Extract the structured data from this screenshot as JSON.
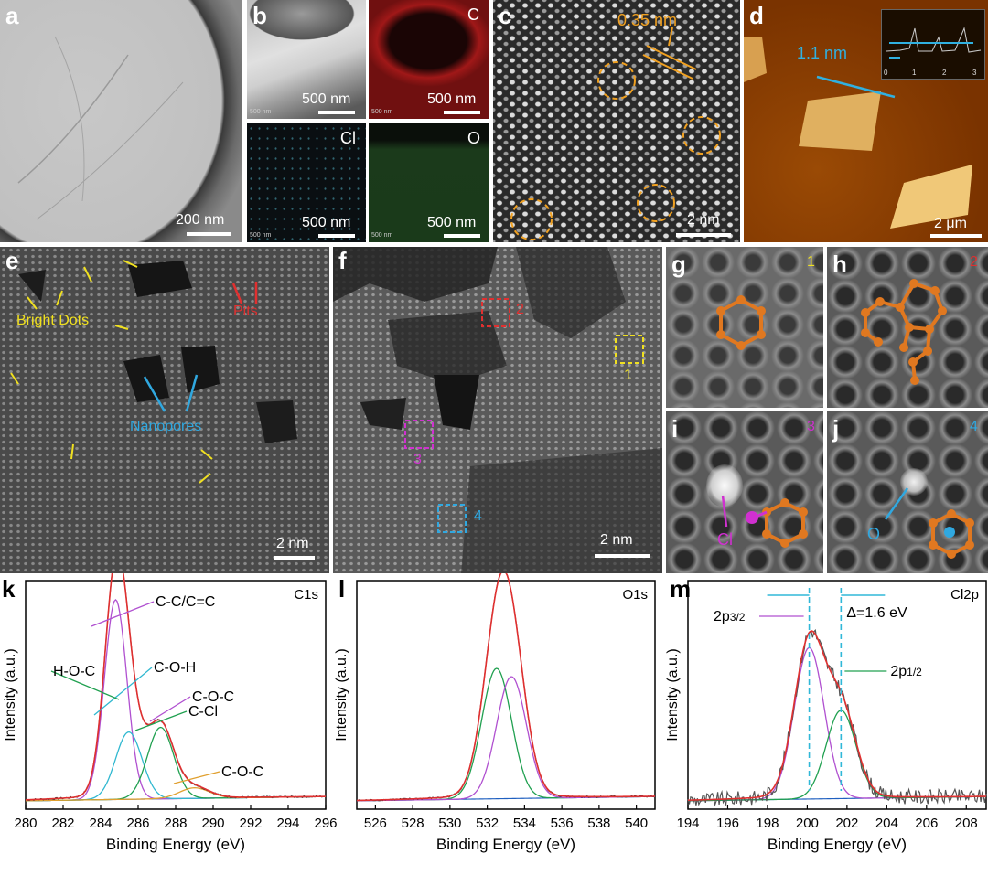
{
  "panels": {
    "a": {
      "letter": "a",
      "scale": "200 nm"
    },
    "b": {
      "letter": "b",
      "scale": "500 nm",
      "tiny": "500 nm"
    },
    "b_c": {
      "element": "C",
      "scale": "500 nm",
      "tiny": "500 nm"
    },
    "b_cl": {
      "element": "Cl",
      "scale": "500 nm",
      "tiny": "500 nm"
    },
    "b_o": {
      "element": "O",
      "scale": "500 nm",
      "tiny": "500 nm"
    },
    "c": {
      "letter": "c",
      "spacing": "0.35 nm",
      "scale": "2 nm"
    },
    "d": {
      "letter": "d",
      "height": "1.1 nm",
      "scale": "2 μm",
      "inset_ticks": [
        "0",
        "1",
        "2",
        "3"
      ]
    },
    "e": {
      "letter": "e",
      "bright_dots": "Bright Dots",
      "pits": "Pits",
      "nanopores": "Nanopores",
      "scale": "2 nm"
    },
    "f": {
      "letter": "f",
      "box1": "1",
      "box2": "2",
      "box3": "3",
      "box4": "4",
      "scale": "2 nm"
    },
    "g": {
      "letter": "g",
      "num": "1"
    },
    "h": {
      "letter": "h",
      "num": "2"
    },
    "i": {
      "letter": "i",
      "num": "3",
      "label": "Cl"
    },
    "j": {
      "letter": "j",
      "num": "4",
      "label": "O"
    }
  },
  "chart_data": [
    {
      "type": "line",
      "panel": "k",
      "title": "C1s",
      "xlabel": "Binding Energy (eV)",
      "ylabel": "Intensity (a.u.)",
      "xlim": [
        280,
        296
      ],
      "xticks": [
        "280",
        "282",
        "284",
        "286",
        "288",
        "290",
        "292",
        "294",
        "296"
      ],
      "annotations": [
        "C-C/C=C",
        "C-O-H",
        "C-Cl",
        "C-O-C"
      ],
      "colors": {
        "raw": "#333333",
        "envelope": "#e03030",
        "cc": "#b050d0",
        "coh": "#30b8d0",
        "ccl": "#20a050",
        "coc": "#e0a030",
        "baseline": "#2060c0"
      },
      "peaks": [
        {
          "name": "C-C/C=C",
          "center": 284.8,
          "amp": 0.95,
          "width": 0.6
        },
        {
          "name": "C-O-H",
          "center": 285.5,
          "amp": 0.32,
          "width": 0.7
        },
        {
          "name": "C-Cl",
          "center": 287.2,
          "amp": 0.34,
          "width": 0.7
        },
        {
          "name": "C-O-C",
          "center": 289.0,
          "amp": 0.05,
          "width": 0.8
        }
      ]
    },
    {
      "type": "line",
      "panel": "l",
      "title": "O1s",
      "xlabel": "Binding Energy (eV)",
      "ylabel": "Intensity (a.u.)",
      "xlim": [
        525,
        541
      ],
      "xticks": [
        "526",
        "528",
        "530",
        "532",
        "534",
        "536",
        "538",
        "540"
      ],
      "annotations": [
        "H-O-C",
        "C-O-C"
      ],
      "colors": {
        "raw": "#333333",
        "envelope": "#e03030",
        "hoc": "#20a050",
        "coc": "#b050d0",
        "baseline": "#2060c0"
      },
      "peaks": [
        {
          "name": "H-O-C",
          "center": 532.5,
          "amp": 0.62,
          "width": 0.8
        },
        {
          "name": "C-O-C",
          "center": 533.3,
          "amp": 0.58,
          "width": 0.8
        }
      ]
    },
    {
      "type": "line",
      "panel": "m",
      "title": "Cl2p",
      "xlabel": "Binding Energy (eV)",
      "ylabel": "Intensity (a.u.)",
      "xlim": [
        194,
        209
      ],
      "xticks": [
        "194",
        "196",
        "198",
        "200",
        "202",
        "204",
        "206",
        "208"
      ],
      "annotations": [
        "2p3/2",
        "2p1/2",
        "Δ=1.6 eV"
      ],
      "colors": {
        "raw": "#555555",
        "envelope": "#e03030",
        "p32": "#b050d0",
        "p12": "#20a050",
        "baseline": "#2060c0",
        "dash": "#30b8d8"
      },
      "peaks": [
        {
          "name": "2p3/2",
          "center": 200.1,
          "amp": 0.72,
          "width": 0.75
        },
        {
          "name": "2p1/2",
          "center": 201.7,
          "amp": 0.42,
          "width": 0.75
        }
      ]
    }
  ]
}
